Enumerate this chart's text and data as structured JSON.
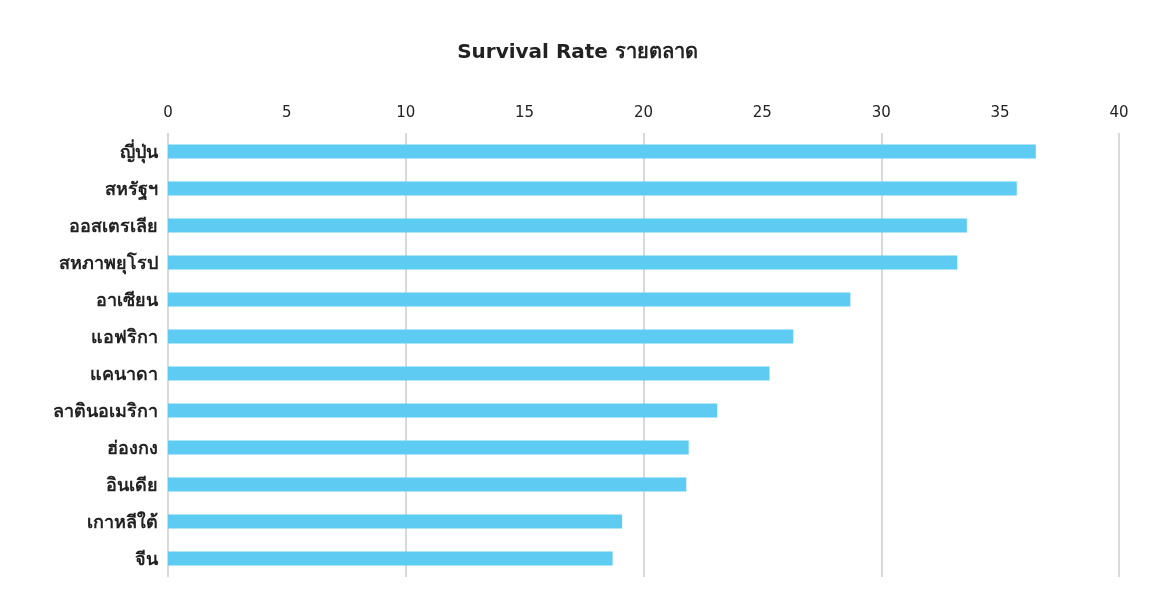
{
  "chart_data": {
    "type": "bar",
    "orientation": "horizontal",
    "title": "Survival Rate รายตลาด",
    "categories": [
      "ญี่ปุ่น",
      "สหรัฐฯ",
      "ออสเตรเลีย",
      "สหภาพยุโรป",
      "อาเซียน",
      "แอฟริกา",
      "แคนาดา",
      "ลาตินอเมริกา",
      "ฮ่องกง",
      "อินเดีย",
      "เกาหลีใต้",
      "จีน"
    ],
    "values": [
      36.5,
      35.7,
      33.6,
      33.2,
      28.7,
      26.3,
      25.3,
      23.1,
      21.9,
      21.8,
      19.1,
      18.7
    ],
    "color": "#5ecbf2",
    "xlim": [
      0,
      40
    ],
    "xticks": [
      0,
      5,
      10,
      15,
      20,
      25,
      30,
      35,
      40
    ],
    "grid": "x"
  }
}
